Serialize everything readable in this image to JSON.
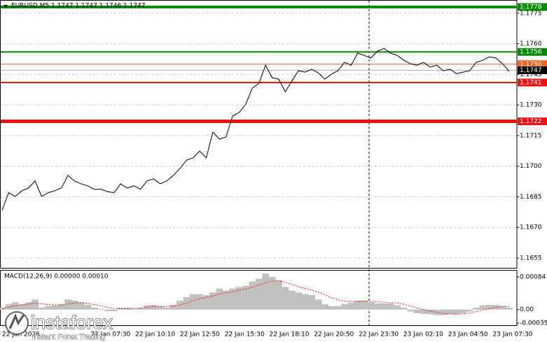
{
  "chart_data": [
    {
      "type": "line",
      "title": "EURUSD,M5  1.1747 1.1747 1.1746 1.1747",
      "color": "#000000",
      "values": [
        1.16784,
        1.1687,
        1.16852,
        1.1688,
        1.16893,
        1.16928,
        1.16852,
        1.1687,
        1.1688,
        1.16893,
        1.16955,
        1.16928,
        1.16914,
        1.16904,
        1.16887,
        1.16887,
        1.16876,
        1.1687,
        1.16914,
        1.16893,
        1.16904,
        1.16887,
        1.16928,
        1.16938,
        1.16914,
        1.16928,
        1.16955,
        1.16989,
        1.1703,
        1.17041,
        1.17075,
        1.17041,
        1.17167,
        1.17133,
        1.17143,
        1.17246,
        1.17263,
        1.17304,
        1.17383,
        1.17406,
        1.17495,
        1.17434,
        1.17427,
        1.17365,
        1.17417,
        1.17468,
        1.17461,
        1.17475,
        1.17458,
        1.17427,
        1.17451,
        1.17468,
        1.17509,
        1.17495,
        1.17554,
        1.17543,
        1.1753,
        1.17564,
        1.17577,
        1.17554,
        1.17543,
        1.17519,
        1.17502,
        1.17495,
        1.17509,
        1.17485,
        1.17495,
        1.17468,
        1.17475,
        1.17454,
        1.17461,
        1.17468,
        1.17509,
        1.17519,
        1.17536,
        1.1753,
        1.17502,
        1.17465
      ],
      "ylim": [
        1.16502,
        1.17811
      ],
      "yticks": [
        1.1775,
        {
          "value": 1.176,
          "label": "1.1760"
        },
        1.1745,
        {
          "value": 1.173,
          "label": "1.1730"
        },
        1.1715,
        {
          "value": 1.17,
          "label": "1.1700"
        },
        1.1685,
        {
          "value": 1.167,
          "label": "1.1670"
        },
        1.1655
      ],
      "grid": true,
      "x_labels": [
        "22 Jan 2026",
        "22 Jan 07:30",
        "22 Jan 10:10",
        "22 Jan 12:50",
        "22 Jan 15:30",
        "22 Jan 18:10",
        "22 Jan 20:50",
        "22 Jan 23:30",
        "23 Jan 02:10",
        "23 Jan 04:50",
        "23 Jan 07:30"
      ],
      "levels": [
        {
          "value": 1.1778,
          "color": "#0a8a0a",
          "line_width": 4
        },
        {
          "value": 1.1756,
          "color": "#0a8a0a",
          "line_width": 2
        },
        {
          "value": {
            "value": 1.175,
            "label": "1.1750"
          },
          "color": "#f26522",
          "line_width": 1
        },
        {
          "value": 1.1747,
          "color": "#000000",
          "line_width": 1
        },
        {
          "value": 1.1741,
          "color": "#ee1111",
          "line_width": 2
        },
        {
          "value": 1.1722,
          "color": "#ee1111",
          "line_width": 5
        }
      ]
    },
    {
      "type": "macd",
      "title": "MACD(12,26,9) 0.00000 0.00010",
      "histogram": {
        "color": "#c0c0c0",
        "values": [
          5e-05,
          0.00014,
          0.00019,
          0.00014,
          0.00019,
          0.00026,
          5e-05,
          9e-05,
          0.00011,
          0.00014,
          0.00026,
          0.00023,
          0.00019,
          0.00012,
          5e-05,
          2e-05,
          -4e-05,
          -4e-05,
          5e-05,
          5e-05,
          2e-05,
          5e-05,
          0.00011,
          0.00012,
          9e-05,
          5e-05,
          0.00012,
          0.00023,
          0.00032,
          0.0004,
          0.0004,
          0.00037,
          0.00044,
          0.00054,
          0.00049,
          0.00054,
          0.00058,
          0.00061,
          0.00072,
          0.00079,
          0.00093,
          0.00084,
          0.00075,
          0.00058,
          0.00049,
          0.00044,
          0.0004,
          0.00037,
          0.00026,
          0.00014,
          9e-05,
          9e-05,
          0.00014,
          0.00018,
          0.00023,
          0.00023,
          0.00019,
          0.00016,
          0.00016,
          0.00016,
          0.00011,
          5e-05,
          -5e-05,
          -9e-05,
          -0.00011,
          -0.00012,
          -0.00014,
          -0.00014,
          -0.00012,
          -0.00012,
          -9e-05,
          -5e-05,
          5e-05,
          0.00011,
          0.00012,
          0.00012,
          9e-05,
          5e-05
        ]
      },
      "signal": {
        "color": "#ee1111",
        "values": [
          3e-05,
          6e-05,
          0.0001,
          0.00012,
          0.00014,
          0.00017,
          0.00015,
          0.00013,
          0.00012,
          0.00012,
          0.00015,
          0.00017,
          0.00018,
          0.00016,
          0.00013,
          0.0001,
          6e-05,
          3e-05,
          3e-05,
          3e-05,
          3e-05,
          4e-05,
          6e-05,
          8e-05,
          8e-05,
          8e-05,
          9e-05,
          0.00012,
          0.00017,
          0.00023,
          0.00028,
          0.00031,
          0.00035,
          0.0004,
          0.00043,
          0.00046,
          0.0005,
          0.00053,
          0.00058,
          0.00063,
          0.0007,
          0.00073,
          0.00074,
          0.0007,
          0.00065,
          0.00059,
          0.00054,
          0.0005,
          0.00045,
          0.00038,
          0.00031,
          0.00025,
          0.00022,
          0.00021,
          0.00021,
          0.00022,
          0.00021,
          0.0002,
          0.00019,
          0.00018,
          0.00017,
          0.00014,
          9e-05,
          4e-05,
          0,
          -4e-05,
          -7e-05,
          -0.0001,
          -0.00011,
          -0.00012,
          -0.00011,
          -9e-05,
          -5e-05,
          -1e-05,
          3e-05,
          6e-05,
          8e-05,
          8e-05
        ]
      },
      "ylim": [
        -0.0004,
        0.001
      ],
      "yticks": [
        0.00084,
        {
          "value": 0,
          "label": "0.00"
        },
        -0.00035
      ]
    }
  ],
  "watermark": {
    "brand": "instaforex",
    "tagline": "Instant Forex Trading"
  }
}
